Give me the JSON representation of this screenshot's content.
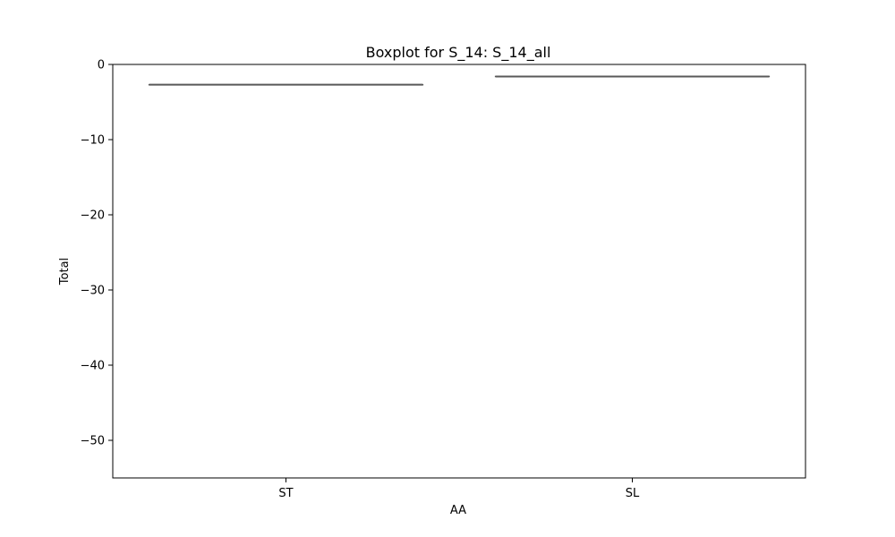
{
  "chart_data": {
    "type": "box",
    "title": "Boxplot for S_14: S_14_all",
    "xlabel": "AA",
    "ylabel": "Total",
    "ylim": [
      -55,
      0
    ],
    "yticks": [
      0,
      -10,
      -20,
      -30,
      -40,
      -50
    ],
    "ytick_labels": [
      "0",
      "−10",
      "−20",
      "−30",
      "−40",
      "−50"
    ],
    "categories": [
      "ST",
      "SL"
    ],
    "boxes": [
      {
        "category": "ST",
        "min": -2.7,
        "q1": -2.7,
        "median": -2.7,
        "q3": -2.7,
        "max": -2.7
      },
      {
        "category": "SL",
        "min": -1.6,
        "q1": -1.6,
        "median": -1.6,
        "q3": -1.6,
        "max": -1.6
      }
    ],
    "grid": false,
    "colors": {
      "box_line": "#595959",
      "axes": "#000000"
    }
  }
}
